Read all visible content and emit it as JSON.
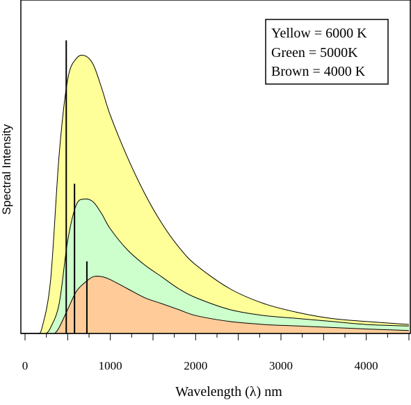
{
  "chart_data": {
    "type": "area",
    "title": "",
    "xlabel": "Wavelength (λ) nm",
    "ylabel": "Spectral Intensity",
    "xlim": [
      0,
      4500
    ],
    "ylim": [
      0,
      1
    ],
    "grid": false,
    "legend_position": "top-right",
    "x_ticks": [
      0,
      1000,
      2000,
      3000,
      4000
    ],
    "x_tick_labels": [
      "0",
      "1000",
      "2000",
      "3000",
      "4000"
    ],
    "legend_lines": [
      "Yellow = 6000 K",
      "Green = 5000K",
      "Brown = 4000 K"
    ],
    "series": [
      {
        "temperature_K": 6000,
        "color": "#ffff99",
        "peak_wavelength_nm": 483,
        "peak_value": 0.93,
        "x": [
          200,
          300,
          400,
          500,
          600,
          700,
          800,
          900,
          1000,
          1200,
          1400,
          1600,
          1800,
          2000,
          2400,
          2800,
          3200,
          3600,
          4000,
          4500
        ],
        "values": [
          0.02,
          0.18,
          0.6,
          0.85,
          0.92,
          0.93,
          0.9,
          0.82,
          0.73,
          0.59,
          0.47,
          0.37,
          0.29,
          0.23,
          0.15,
          0.1,
          0.07,
          0.05,
          0.04,
          0.03
        ]
      },
      {
        "temperature_K": 5000,
        "color": "#ccffcc",
        "peak_wavelength_nm": 580,
        "peak_value": 0.45,
        "x": [
          300,
          400,
          500,
          600,
          700,
          800,
          900,
          1000,
          1200,
          1400,
          1600,
          1800,
          2000,
          2400,
          2800,
          3200,
          3600,
          4000,
          4500
        ],
        "values": [
          0.02,
          0.1,
          0.31,
          0.43,
          0.45,
          0.44,
          0.4,
          0.35,
          0.28,
          0.23,
          0.19,
          0.15,
          0.12,
          0.08,
          0.06,
          0.05,
          0.04,
          0.03,
          0.025
        ]
      },
      {
        "temperature_K": 4000,
        "color": "#ffcc99",
        "peak_wavelength_nm": 725,
        "peak_value": 0.19,
        "x": [
          400,
          500,
          600,
          700,
          800,
          900,
          1000,
          1200,
          1400,
          1600,
          1800,
          2000,
          2400,
          2800,
          3200,
          3600,
          4000,
          4500
        ],
        "values": [
          0.02,
          0.08,
          0.14,
          0.17,
          0.19,
          0.19,
          0.18,
          0.15,
          0.12,
          0.1,
          0.08,
          0.06,
          0.04,
          0.03,
          0.025,
          0.02,
          0.015,
          0.01
        ]
      }
    ]
  }
}
